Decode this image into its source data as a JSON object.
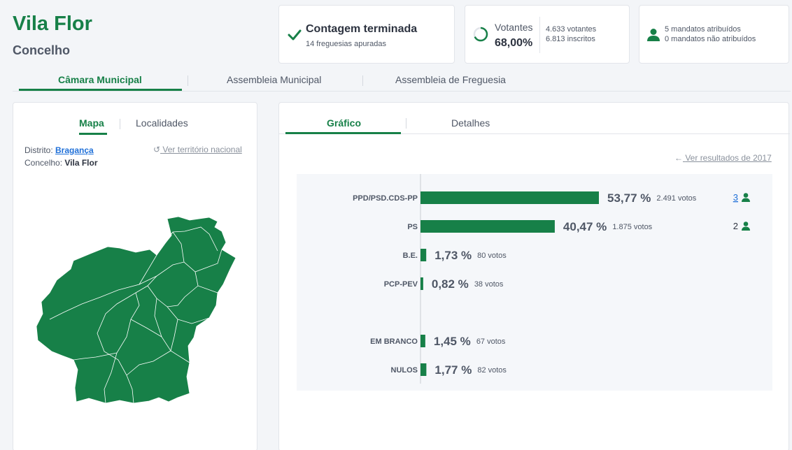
{
  "header": {
    "title": "Vila Flor",
    "subtitle": "Concelho"
  },
  "status": {
    "title": "Contagem terminada",
    "sub": "14 freguesias apuradas"
  },
  "voters": {
    "label": "Votantes",
    "percent": "68,00%",
    "voters_line": "4.633 votantes",
    "registered_line": "6.813 inscritos"
  },
  "mandates": {
    "assigned": "5 mandatos atribuídos",
    "unassigned": "0 mandatos não atribuídos"
  },
  "main_tabs": [
    {
      "label": "Câmara Municipal"
    },
    {
      "label": "Assembleia Municipal"
    },
    {
      "label": "Assembleia de Freguesia"
    }
  ],
  "map_panel": {
    "tabs": [
      {
        "label": "Mapa"
      },
      {
        "label": "Localidades"
      }
    ],
    "district_label": "Distrito:",
    "district_value": "Bragança",
    "council_label": "Concelho:",
    "council_value": "Vila Flor",
    "national_link": "Ver território nacional"
  },
  "chart_panel": {
    "tabs": [
      {
        "label": "Gráfico"
      },
      {
        "label": "Detalhes"
      }
    ],
    "prev_link": "Ver resultados de 2017"
  },
  "chart_data": {
    "type": "bar",
    "orientation": "horizontal",
    "categories": [
      "PPD/PSD.CDS-PP",
      "PS",
      "B.E.",
      "PCP-PEV",
      "EM BRANCO",
      "NULOS"
    ],
    "values": [
      53.77,
      40.47,
      1.73,
      0.82,
      1.45,
      1.77
    ],
    "value_labels": [
      "53,77 %",
      "40,47 %",
      "1,73 %",
      "0,82 %",
      "1,45 %",
      "1,77 %"
    ],
    "votes_labels": [
      "2.491 votos",
      "1.875 votos",
      "80 votos",
      "38 votos",
      "67 votos",
      "82 votos"
    ],
    "mandates": [
      "3",
      "2",
      "",
      "",
      "",
      ""
    ],
    "mandates_linked": [
      true,
      false,
      false,
      false,
      false,
      false
    ],
    "gap_before_index": 4,
    "color": "#178048"
  },
  "colors": {
    "brand": "#178048",
    "link": "#1e6fd8"
  }
}
